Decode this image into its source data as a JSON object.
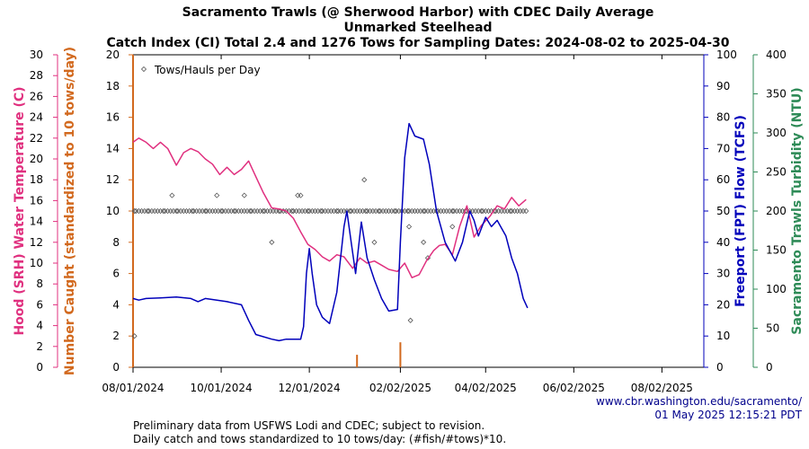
{
  "chart_data": {
    "type": "line",
    "title": [
      "Sacramento Trawls (@ Sherwood Harbor) with CDEC Daily Average",
      "Unmarked Steelhead",
      "Catch Index (CI) Total 2.4 and 1276 Tows for Sampling Dates: 2024-08-02 to 2025-04-30"
    ],
    "x_axis": {
      "type": "date",
      "range": [
        "2024-08-01",
        "2025-08-31"
      ],
      "tick_labels": [
        {
          "date": "2024-08-01",
          "label": "08/01/2024"
        },
        {
          "date": "2024-10-01",
          "label": "10/01/2024"
        },
        {
          "date": "2024-12-01",
          "label": "12/01/2024"
        },
        {
          "date": "2025-02-02",
          "label": "02/02/2025"
        },
        {
          "date": "2025-04-02",
          "label": "04/02/2025"
        },
        {
          "date": "2025-06-02",
          "label": "06/02/2025"
        },
        {
          "date": "2025-08-02",
          "label": "08/02/2025"
        }
      ]
    },
    "y_axes": {
      "temperature": {
        "label": "Hood (SRH) Water Temperature (C)",
        "range": [
          0,
          30
        ],
        "ticks": [
          0,
          2,
          4,
          6,
          8,
          10,
          12,
          14,
          16,
          18,
          20,
          22,
          24,
          26,
          28,
          30
        ],
        "color": "#e0307f"
      },
      "catch": {
        "label": "Number Caught (standardized to 10 tows/day)",
        "range": [
          0,
          20
        ],
        "ticks": [
          0,
          2,
          4,
          6,
          8,
          10,
          12,
          14,
          16,
          18,
          20
        ],
        "color": "#d2691e"
      },
      "flow": {
        "label": "Freeport (FPT) Flow (TCFS)",
        "range": [
          0,
          100
        ],
        "ticks": [
          0,
          10,
          20,
          30,
          40,
          50,
          60,
          70,
          80,
          90,
          100
        ],
        "color": "#0000bb"
      },
      "turbidity": {
        "label": "Sacramento Trawls Turbidity (NTU)",
        "range": [
          0,
          400
        ],
        "ticks": [
          0,
          50,
          100,
          150,
          200,
          250,
          300,
          350,
          400
        ],
        "color": "#2e8b57"
      }
    },
    "legend": {
      "position": "top-left",
      "entries": [
        {
          "symbol": "diamond",
          "label": "Tows/Hauls per Day"
        }
      ]
    },
    "series": [
      {
        "name": "Hood (SRH) Water Temperature (C)",
        "axis": "temperature",
        "color": "#e0307f",
        "points": [
          [
            "2024-08-01",
            21.6
          ],
          [
            "2024-08-05",
            22.0
          ],
          [
            "2024-08-10",
            21.6
          ],
          [
            "2024-08-15",
            21.0
          ],
          [
            "2024-08-20",
            21.6
          ],
          [
            "2024-08-25",
            21.0
          ],
          [
            "2024-08-31",
            19.4
          ],
          [
            "2024-09-05",
            20.6
          ],
          [
            "2024-09-10",
            21.0
          ],
          [
            "2024-09-15",
            20.7
          ],
          [
            "2024-09-20",
            20.0
          ],
          [
            "2024-09-25",
            19.5
          ],
          [
            "2024-09-30",
            18.5
          ],
          [
            "2024-10-05",
            19.2
          ],
          [
            "2024-10-10",
            18.5
          ],
          [
            "2024-10-15",
            19.0
          ],
          [
            "2024-10-20",
            19.8
          ],
          [
            "2024-10-25",
            18.3
          ],
          [
            "2024-10-30",
            16.8
          ],
          [
            "2024-11-05",
            15.3
          ],
          [
            "2024-11-10",
            15.2
          ],
          [
            "2024-11-15",
            15.0
          ],
          [
            "2024-11-20",
            14.3
          ],
          [
            "2024-11-25",
            13.0
          ],
          [
            "2024-11-30",
            11.8
          ],
          [
            "2024-12-05",
            11.3
          ],
          [
            "2024-12-10",
            10.6
          ],
          [
            "2024-12-15",
            10.2
          ],
          [
            "2024-12-20",
            10.8
          ],
          [
            "2024-12-25",
            10.6
          ],
          [
            "2024-12-31",
            9.5
          ],
          [
            "2025-01-05",
            10.5
          ],
          [
            "2025-01-10",
            10.0
          ],
          [
            "2025-01-15",
            10.2
          ],
          [
            "2025-01-20",
            9.8
          ],
          [
            "2025-01-25",
            9.4
          ],
          [
            "2025-01-31",
            9.2
          ],
          [
            "2025-02-05",
            10.0
          ],
          [
            "2025-02-10",
            8.6
          ],
          [
            "2025-02-15",
            8.9
          ],
          [
            "2025-02-20",
            10.2
          ],
          [
            "2025-02-25",
            11.2
          ],
          [
            "2025-03-01",
            11.7
          ],
          [
            "2025-03-05",
            11.8
          ],
          [
            "2025-03-10",
            10.8
          ],
          [
            "2025-03-15",
            13.5
          ],
          [
            "2025-03-20",
            15.5
          ],
          [
            "2025-03-25",
            12.5
          ],
          [
            "2025-03-30",
            13.6
          ],
          [
            "2025-04-05",
            14.5
          ],
          [
            "2025-04-10",
            15.5
          ],
          [
            "2025-04-15",
            15.2
          ],
          [
            "2025-04-20",
            16.3
          ],
          [
            "2025-04-25",
            15.5
          ],
          [
            "2025-04-30",
            16.1
          ]
        ]
      },
      {
        "name": "Freeport (FPT) Flow (TCFS)",
        "axis": "flow",
        "color": "#0000bb",
        "points": [
          [
            "2024-08-01",
            22.0
          ],
          [
            "2024-08-05",
            21.5
          ],
          [
            "2024-08-10",
            22.0
          ],
          [
            "2024-08-20",
            22.2
          ],
          [
            "2024-08-31",
            22.5
          ],
          [
            "2024-09-10",
            22.0
          ],
          [
            "2024-09-15",
            21.0
          ],
          [
            "2024-09-20",
            22.0
          ],
          [
            "2024-10-05",
            21.0
          ],
          [
            "2024-10-15",
            20.0
          ],
          [
            "2024-10-20",
            15.0
          ],
          [
            "2024-10-25",
            10.5
          ],
          [
            "2024-11-05",
            9.0
          ],
          [
            "2024-11-10",
            8.5
          ],
          [
            "2024-11-15",
            9.0
          ],
          [
            "2024-11-25",
            9.0
          ],
          [
            "2024-11-27",
            13.0
          ],
          [
            "2024-11-29",
            30.0
          ],
          [
            "2024-12-01",
            38.0
          ],
          [
            "2024-12-03",
            30.0
          ],
          [
            "2024-12-06",
            20.0
          ],
          [
            "2024-12-10",
            16.0
          ],
          [
            "2024-12-15",
            14.0
          ],
          [
            "2024-12-20",
            24.0
          ],
          [
            "2024-12-25",
            45.0
          ],
          [
            "2024-12-27",
            50.0
          ],
          [
            "2024-12-30",
            40.0
          ],
          [
            "2025-01-02",
            30.0
          ],
          [
            "2025-01-06",
            46.5
          ],
          [
            "2025-01-10",
            35.0
          ],
          [
            "2025-01-15",
            28.0
          ],
          [
            "2025-01-20",
            22.0
          ],
          [
            "2025-01-25",
            18.0
          ],
          [
            "2025-01-31",
            18.5
          ],
          [
            "2025-02-02",
            40.0
          ],
          [
            "2025-02-05",
            67.0
          ],
          [
            "2025-02-08",
            78.0
          ],
          [
            "2025-02-12",
            74.0
          ],
          [
            "2025-02-18",
            73.0
          ],
          [
            "2025-02-22",
            65.0
          ],
          [
            "2025-02-27",
            50.0
          ],
          [
            "2025-03-05",
            40.0
          ],
          [
            "2025-03-12",
            34.0
          ],
          [
            "2025-03-17",
            40.0
          ],
          [
            "2025-03-22",
            50.0
          ],
          [
            "2025-03-25",
            47.0
          ],
          [
            "2025-03-28",
            42.0
          ],
          [
            "2025-04-02",
            48.0
          ],
          [
            "2025-04-06",
            45.0
          ],
          [
            "2025-04-10",
            47.0
          ],
          [
            "2025-04-16",
            42.0
          ],
          [
            "2025-04-20",
            35.0
          ],
          [
            "2025-04-24",
            30.0
          ],
          [
            "2025-04-28",
            22.0
          ],
          [
            "2025-05-01",
            19.0
          ]
        ]
      }
    ],
    "tows_per_day": {
      "axis": "catch",
      "marker": "diamond",
      "values_at_10_count": 150,
      "range": [
        "2024-08-02",
        "2025-04-30"
      ],
      "outliers": [
        [
          "2024-08-02",
          2
        ],
        [
          "2024-08-28",
          11
        ],
        [
          "2024-09-28",
          11
        ],
        [
          "2024-10-17",
          11
        ],
        [
          "2024-11-05",
          8
        ],
        [
          "2024-11-23",
          11
        ],
        [
          "2024-11-25",
          11
        ],
        [
          "2025-01-08",
          12
        ],
        [
          "2025-01-15",
          8
        ],
        [
          "2025-02-08",
          9
        ],
        [
          "2025-02-09",
          3
        ],
        [
          "2025-02-18",
          8
        ],
        [
          "2025-02-21",
          7
        ],
        [
          "2025-03-10",
          9
        ]
      ]
    },
    "catch_bars": {
      "axis": "catch",
      "color": "#d2691e",
      "values": [
        [
          "2024-08-01",
          20
        ],
        [
          "2025-01-03",
          0.8
        ],
        [
          "2025-02-02",
          1.6
        ]
      ]
    }
  },
  "footer": {
    "credit_url": "www.cbr.washington.edu/sacramento/",
    "credit_time": "01 May 2025 12:15:21 PDT",
    "note_1": "Preliminary data from USFWS Lodi and CDEC; subject to revision.",
    "note_2": "Daily catch and tows standardized to 10 tows/day: (#fish/#tows)*10."
  }
}
